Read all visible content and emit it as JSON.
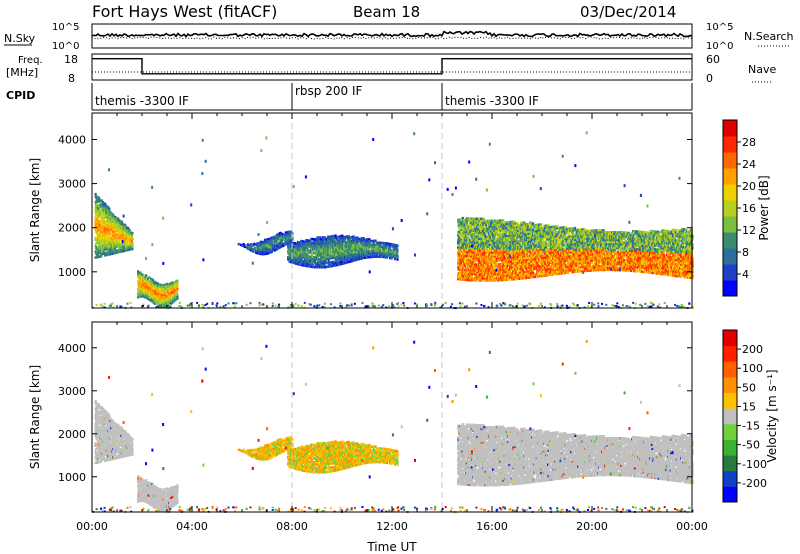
{
  "header": {
    "station": "Fort Hays West (fitACF)",
    "beam": "Beam 18",
    "date": "03/Dec/2014"
  },
  "noise_panel": {
    "left_label": "N.Sky",
    "right_label": "N.Search",
    "left_ticks": [
      "10^5",
      "10^0"
    ],
    "right_ticks": [
      "10^5",
      "10^0"
    ]
  },
  "freq_panel": {
    "left_label_1": "Freq.",
    "left_label_2": "[MHz]",
    "right_label": "Nave",
    "left_ticks": [
      "18",
      "8"
    ],
    "right_ticks": [
      "60",
      "0"
    ],
    "freq_segments": [
      {
        "start_hour": 0.0,
        "end_hour": 2.0,
        "value_mhz": 16.2
      },
      {
        "start_hour": 2.0,
        "end_hour": 14.0,
        "value_mhz": 10.4
      },
      {
        "start_hour": 14.0,
        "end_hour": 24.0,
        "value_mhz": 16.2
      }
    ]
  },
  "cpid": {
    "label": "CPID",
    "segments": [
      "themis -3300 IF",
      "rbsp 200 IF",
      "themis -3300 IF"
    ],
    "boundaries_hours": [
      8,
      14
    ]
  },
  "chart_data": [
    {
      "type": "heatmap",
      "title": "",
      "ylabel": "Slant Range [km]",
      "xlabel": "",
      "xlim_hours": [
        0,
        24
      ],
      "ylim_km": [
        180,
        4600
      ],
      "y_ticks": [
        "1000",
        "2000",
        "3000",
        "4000"
      ],
      "colorbar": {
        "label": "Power [dB]",
        "ticks": [
          "28",
          "24",
          "20",
          "16",
          "12",
          "8",
          "4"
        ],
        "colors": [
          "#0000ff",
          "#1e40c8",
          "#2c6e9c",
          "#3a8c6e",
          "#7ac040",
          "#b6d020",
          "#f0d000",
          "#ffa000",
          "#ff6800",
          "#ff2800",
          "#e00000"
        ]
      },
      "echo_regions": [
        {
          "t0": 0.1,
          "t1": 1.6,
          "r_low": 1300,
          "r_high": 2200,
          "peak_db": 22
        },
        {
          "t0": 1.8,
          "t1": 3.4,
          "r_low": 350,
          "r_high": 900,
          "peak_db": 24
        },
        {
          "t0": 5.8,
          "t1": 8.0,
          "r_low": 1550,
          "r_high": 1800,
          "peak_db": 10
        },
        {
          "t0": 7.8,
          "t1": 12.2,
          "r_low": 1250,
          "r_high": 1700,
          "peak_db": 12
        },
        {
          "t0": 14.6,
          "t1": 24.0,
          "r_low": 950,
          "r_high": 2100,
          "peak_db": 28
        }
      ]
    },
    {
      "type": "heatmap",
      "title": "",
      "ylabel": "Slant Range [km]",
      "xlabel": "Time UT",
      "xlim_hours": [
        0,
        24
      ],
      "ylim_km": [
        180,
        4600
      ],
      "y_ticks": [
        "1000",
        "2000",
        "3000",
        "4000"
      ],
      "x_ticks": [
        "00:00",
        "04:00",
        "08:00",
        "12:00",
        "16:00",
        "20:00",
        "00:00"
      ],
      "colorbar": {
        "label": "Velocity [m s⁻¹]",
        "ticks": [
          "200",
          "100",
          "50",
          "15",
          "-15",
          "-50",
          "-100",
          "-200"
        ],
        "colors": [
          "#0000ff",
          "#1040c8",
          "#2a7a40",
          "#3cb030",
          "#70d040",
          "#c0c0c0",
          "#ffc000",
          "#ff9000",
          "#ff6000",
          "#ff2000",
          "#e00000"
        ]
      },
      "ground_scatter_color": "#c0c0c0"
    }
  ]
}
